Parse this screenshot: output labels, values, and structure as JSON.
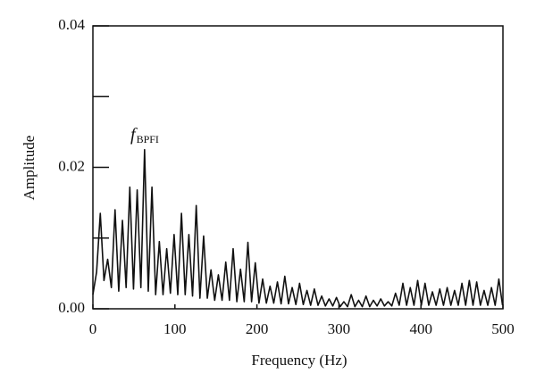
{
  "chart_data": {
    "type": "line",
    "xlabel": "Frequency (Hz)",
    "ylabel": "Amplitude",
    "annotation": {
      "text": "f",
      "subscript": "BPFI"
    },
    "xlim": [
      0,
      500
    ],
    "xticks": [
      0,
      100,
      200,
      300,
      400,
      500
    ],
    "ylim": [
      0,
      0.04
    ],
    "yticks": [
      {
        "value": 0,
        "label": "0.00"
      },
      0.02,
      0.04
    ],
    "yminorticks": [
      0.01,
      0.03
    ],
    "grid": false,
    "series": [
      {
        "color": "#111111",
        "x": [
          0,
          4.5,
          9,
          13.5,
          18,
          22.5,
          27,
          31.5,
          36,
          40.5,
          45,
          49.5,
          54,
          58.5,
          63,
          67.5,
          72,
          76.5,
          81,
          85.5,
          90,
          94.5,
          99,
          103.5,
          108,
          112.5,
          117,
          121.5,
          126,
          130.5,
          135,
          139.5,
          144,
          148.5,
          153,
          157.5,
          162,
          166.5,
          171,
          175.5,
          180,
          184.5,
          189,
          193.5,
          198,
          202.5,
          207,
          211.5,
          216,
          220.5,
          225,
          229.5,
          234,
          238.5,
          243,
          247.5,
          252,
          256.5,
          261,
          265.5,
          270,
          274.5,
          279,
          283.5,
          288,
          292.5,
          297,
          301.5,
          306,
          310.5,
          315,
          319.5,
          324,
          328.5,
          333,
          337.5,
          342,
          346.5,
          351,
          355.5,
          360,
          364.5,
          369,
          373.5,
          378,
          382.5,
          387,
          391.5,
          396,
          400.5,
          405,
          409.5,
          414,
          418.5,
          423,
          427.5,
          432,
          436.5,
          441,
          445.5,
          450,
          454.5,
          459,
          463.5,
          468,
          472.5,
          477,
          481.5,
          486,
          490.5,
          495,
          499.5
        ],
        "values": [
          0.002,
          0.0052,
          0.0135,
          0.004,
          0.007,
          0.003,
          0.014,
          0.0025,
          0.0125,
          0.003,
          0.0172,
          0.0028,
          0.0168,
          0.003,
          0.0225,
          0.0025,
          0.0172,
          0.002,
          0.0095,
          0.002,
          0.0085,
          0.0022,
          0.0105,
          0.002,
          0.0135,
          0.002,
          0.0105,
          0.0018,
          0.0146,
          0.0015,
          0.0103,
          0.0015,
          0.0055,
          0.0012,
          0.0048,
          0.0012,
          0.0066,
          0.0012,
          0.0085,
          0.001,
          0.0056,
          0.001,
          0.0094,
          0.001,
          0.0065,
          0.0008,
          0.0042,
          0.0008,
          0.0032,
          0.0008,
          0.0038,
          0.0007,
          0.0046,
          0.0007,
          0.003,
          0.0006,
          0.0036,
          0.0006,
          0.0026,
          0.0005,
          0.0028,
          0.0005,
          0.0018,
          0.0004,
          0.0014,
          0.0004,
          0.0016,
          0.0003,
          0.001,
          0.0003,
          0.002,
          0.0003,
          0.0012,
          0.0003,
          0.0018,
          0.0003,
          0.0012,
          0.0004,
          0.0014,
          0.0004,
          0.001,
          0.0004,
          0.0022,
          0.0005,
          0.0036,
          0.0005,
          0.003,
          0.0005,
          0.004,
          0.0005,
          0.0036,
          0.0005,
          0.0024,
          0.0005,
          0.0028,
          0.0005,
          0.003,
          0.0005,
          0.0026,
          0.0005,
          0.0036,
          0.0005,
          0.004,
          0.0005,
          0.0038,
          0.0005,
          0.0026,
          0.0005,
          0.003,
          0.0005,
          0.0042,
          0.0005
        ]
      }
    ]
  }
}
